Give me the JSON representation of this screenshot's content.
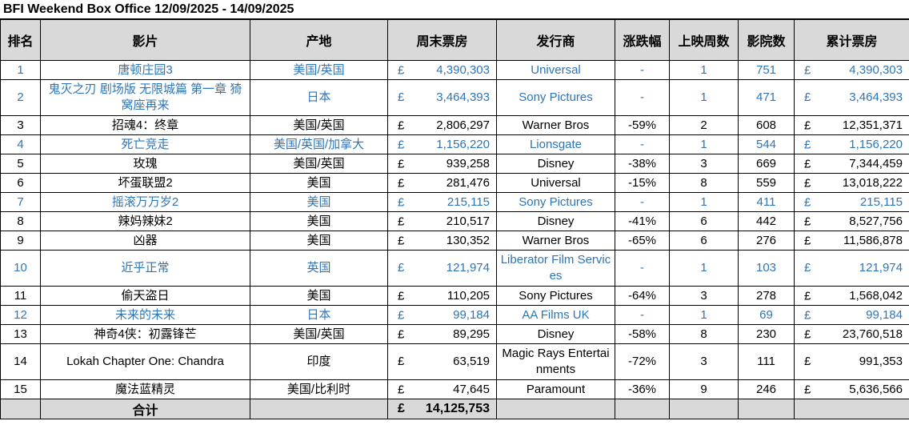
{
  "title": "BFI Weekend Box Office 12/09/2025 - 14/09/2025",
  "headers": {
    "rank": "排名",
    "film": "影片",
    "origin": "产地",
    "weekend_gross": "周末票房",
    "distributor": "发行商",
    "change": "涨跌幅",
    "weeks": "上映周数",
    "cinemas": "影院数",
    "total_gross": "累计票房"
  },
  "currency": "£",
  "colors": {
    "new_entry": "#2e75b6",
    "header_bg": "#d9d9d9",
    "border": "#000000"
  },
  "rows": [
    {
      "rank": "1",
      "film": "唐顿庄园3",
      "origin": "美国/英国",
      "weekend": "4,390,303",
      "distributor": "Universal",
      "change": "-",
      "weeks": "1",
      "cinemas": "751",
      "total": "4,390,303",
      "new": true
    },
    {
      "rank": "2",
      "film": "鬼灭之刃 剧场版 无限城篇 第一章 猗窝座再来",
      "origin": "日本",
      "weekend": "3,464,393",
      "distributor": "Sony Pictures",
      "change": "-",
      "weeks": "1",
      "cinemas": "471",
      "total": "3,464,393",
      "new": true,
      "tall": true
    },
    {
      "rank": "3",
      "film": "招魂4：终章",
      "origin": "美国/英国",
      "weekend": "2,806,297",
      "distributor": "Warner Bros",
      "change": "-59%",
      "weeks": "2",
      "cinemas": "608",
      "total": "12,351,371",
      "new": false
    },
    {
      "rank": "4",
      "film": "死亡竞走",
      "origin": "美国/英国/加拿大",
      "weekend": "1,156,220",
      "distributor": "Lionsgate",
      "change": "-",
      "weeks": "1",
      "cinemas": "544",
      "total": "1,156,220",
      "new": true
    },
    {
      "rank": "5",
      "film": "玫瑰",
      "origin": "美国/英国",
      "weekend": "939,258",
      "distributor": "Disney",
      "change": "-38%",
      "weeks": "3",
      "cinemas": "669",
      "total": "7,344,459",
      "new": false
    },
    {
      "rank": "6",
      "film": "坏蛋联盟2",
      "origin": "美国",
      "weekend": "281,476",
      "distributor": "Universal",
      "change": "-15%",
      "weeks": "8",
      "cinemas": "559",
      "total": "13,018,222",
      "new": false
    },
    {
      "rank": "7",
      "film": "摇滚万万岁2",
      "origin": "美国",
      "weekend": "215,115",
      "distributor": "Sony Pictures",
      "change": "-",
      "weeks": "1",
      "cinemas": "411",
      "total": "215,115",
      "new": true
    },
    {
      "rank": "8",
      "film": "辣妈辣妹2",
      "origin": "美国",
      "weekend": "210,517",
      "distributor": "Disney",
      "change": "-41%",
      "weeks": "6",
      "cinemas": "442",
      "total": "8,527,756",
      "new": false
    },
    {
      "rank": "9",
      "film": "凶器",
      "origin": "美国",
      "weekend": "130,352",
      "distributor": "Warner Bros",
      "change": "-65%",
      "weeks": "6",
      "cinemas": "276",
      "total": "11,586,878",
      "new": false
    },
    {
      "rank": "10",
      "film": "近乎正常",
      "origin": "英国",
      "weekend": "121,974",
      "distributor": "Liberator Film Services",
      "change": "-",
      "weeks": "1",
      "cinemas": "103",
      "total": "121,974",
      "new": true,
      "tall": true
    },
    {
      "rank": "11",
      "film": "偷天盗日",
      "origin": "美国",
      "weekend": "110,205",
      "distributor": "Sony Pictures",
      "change": "-64%",
      "weeks": "3",
      "cinemas": "278",
      "total": "1,568,042",
      "new": false
    },
    {
      "rank": "12",
      "film": "未来的未来",
      "origin": "日本",
      "weekend": "99,184",
      "distributor": "AA Films UK",
      "change": "-",
      "weeks": "1",
      "cinemas": "69",
      "total": "99,184",
      "new": true
    },
    {
      "rank": "13",
      "film": "神奇4侠：初露锋芒",
      "origin": "美国/英国",
      "weekend": "89,295",
      "distributor": "Disney",
      "change": "-58%",
      "weeks": "8",
      "cinemas": "230",
      "total": "23,760,518",
      "new": false
    },
    {
      "rank": "14",
      "film": "Lokah Chapter One: Chandra",
      "origin": "印度",
      "weekend": "63,519",
      "distributor": "Magic Rays Entertainments",
      "change": "-72%",
      "weeks": "3",
      "cinemas": "111",
      "total": "991,353",
      "new": false,
      "tall": true
    },
    {
      "rank": "15",
      "film": "魔法蓝精灵",
      "origin": "美国/比利时",
      "weekend": "47,645",
      "distributor": "Paramount",
      "change": "-36%",
      "weeks": "9",
      "cinemas": "246",
      "total": "5,636,566",
      "new": false
    }
  ],
  "total": {
    "label": "合计",
    "value": "14,125,753"
  }
}
